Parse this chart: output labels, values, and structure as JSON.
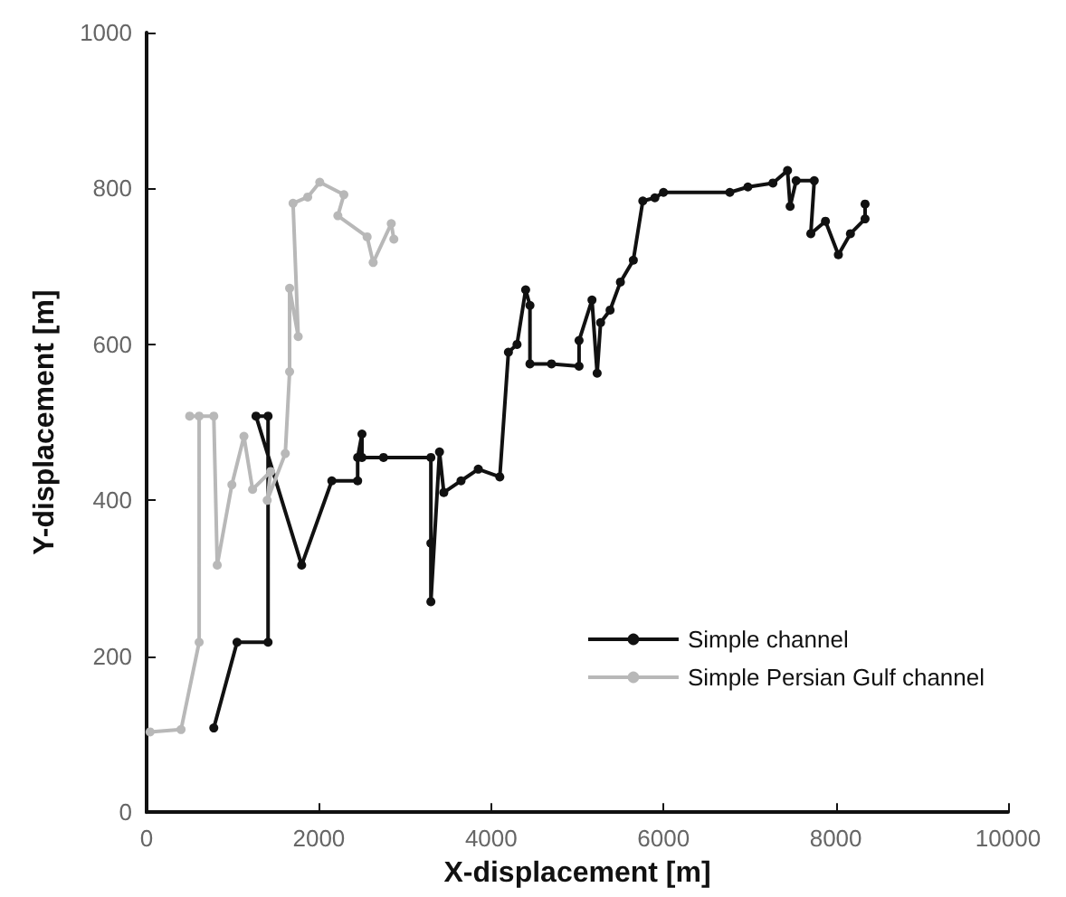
{
  "chart_data": {
    "type": "line",
    "xlabel": "X-displacement [m]",
    "ylabel": "Y-displacement [m]",
    "xlim": [
      0,
      10000
    ],
    "xticks": [
      0,
      2000,
      4000,
      6000,
      8000,
      10000
    ],
    "ylim": [
      0,
      1000
    ],
    "yticks": [
      0,
      200,
      400,
      600,
      800,
      1000
    ],
    "grid": false,
    "legend": "bottom right",
    "marker": "circle",
    "line_style": "solid",
    "series": [
      {
        "name": "Simple channel",
        "color": "#111111",
        "x": [
          780,
          1050,
          1410,
          1410,
          1270,
          1800,
          2150,
          2450,
          2450,
          2500,
          2500,
          2750,
          3300,
          3300,
          3300,
          3400,
          3450,
          3650,
          3850,
          4100,
          4200,
          4300,
          4400,
          4450,
          4450,
          4700,
          5020,
          5020,
          5170,
          5230,
          5270,
          5380,
          5500,
          5650,
          5760,
          5900,
          6000,
          6770,
          6980,
          7270,
          7440,
          7470,
          7540,
          7750,
          7710,
          7880,
          8030,
          8170,
          8340,
          8340
        ],
        "values": [
          108,
          218,
          218,
          508,
          508,
          317,
          425,
          425,
          455,
          485,
          455,
          455,
          455,
          345,
          270,
          462,
          410,
          425,
          440,
          430,
          590,
          600,
          670,
          650,
          575,
          575,
          572,
          605,
          657,
          563,
          628,
          644,
          680,
          708,
          784,
          788,
          795,
          795,
          802,
          807,
          823,
          777,
          810,
          810,
          742,
          758,
          715,
          742,
          761,
          780
        ]
      },
      {
        "name": "Simple Persian Gulf channel",
        "color": "#b8b8b8",
        "x": [
          40,
          400,
          610,
          610,
          500,
          780,
          820,
          990,
          1130,
          1230,
          1440,
          1400,
          1610,
          1660,
          1660,
          1760,
          1700,
          1870,
          2010,
          2290,
          2220,
          2560,
          2630,
          2840,
          2870
        ],
        "values": [
          103,
          106,
          218,
          508,
          508,
          508,
          317,
          420,
          482,
          414,
          437,
          400,
          460,
          565,
          672,
          610,
          781,
          789,
          808,
          792,
          765,
          738,
          705,
          755,
          735
        ]
      }
    ]
  }
}
